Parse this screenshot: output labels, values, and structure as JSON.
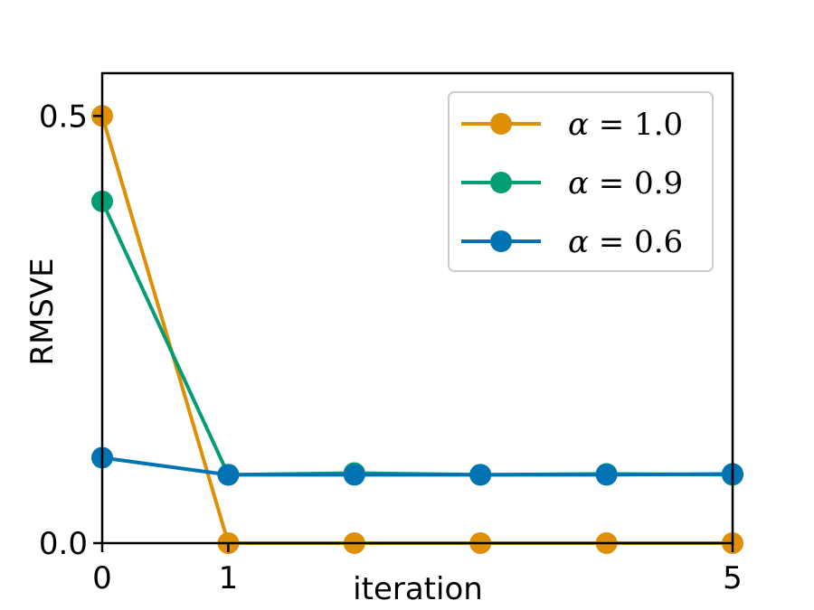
{
  "chart_data": {
    "type": "line",
    "xlabel": "iteration",
    "ylabel": "RMSVE",
    "xlim": [
      0,
      5
    ],
    "ylim": [
      0,
      0.55
    ],
    "x_ticks": [
      0,
      1,
      5
    ],
    "x_tick_labels": [
      "0",
      "1",
      "5"
    ],
    "y_ticks": [
      0.0,
      0.5
    ],
    "y_tick_labels": [
      "0.0",
      "0.5"
    ],
    "grid": false,
    "legend_position": "top-right",
    "x": [
      0,
      1,
      2,
      3,
      4,
      5
    ],
    "series": [
      {
        "name": "α = 1.0",
        "symbol": "α",
        "rest": " = 1.0",
        "color": "#DE8F05",
        "values": [
          0.5,
          0.0,
          0.0,
          0.0,
          0.0,
          0.0
        ]
      },
      {
        "name": "α = 0.9",
        "symbol": "α",
        "rest": " = 0.9",
        "color": "#029E73",
        "values": [
          0.4,
          0.08,
          0.082,
          0.08,
          0.081,
          0.08
        ]
      },
      {
        "name": "α = 0.6",
        "symbol": "α",
        "rest": " = 0.6",
        "color": "#0173B2",
        "values": [
          0.1,
          0.08,
          0.08,
          0.08,
          0.08,
          0.081
        ]
      }
    ]
  }
}
